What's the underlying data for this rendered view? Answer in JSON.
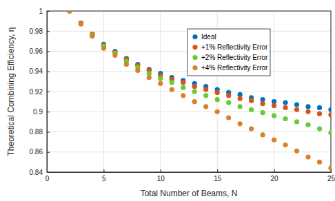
{
  "chart_data": {
    "type": "scatter",
    "x_label": "Total Number of Beams, N",
    "y_label": "Theoretical Combining Efficiency, η",
    "x": [
      2,
      3,
      4,
      5,
      6,
      7,
      8,
      9,
      10,
      11,
      12,
      13,
      14,
      15,
      16,
      17,
      18,
      19,
      20,
      21,
      22,
      23,
      24,
      25
    ],
    "series": [
      {
        "name": "Ideal",
        "color": "#0072bd",
        "values": [
          1.0,
          0.988,
          0.977,
          0.967,
          0.96,
          0.953,
          0.947,
          0.942,
          0.938,
          0.934,
          0.931,
          0.928,
          0.925,
          0.922,
          0.919,
          0.917,
          0.914,
          0.912,
          0.91,
          0.909,
          0.907,
          0.905,
          0.904,
          0.902
        ]
      },
      {
        "name": "+1% Reflectivity Error",
        "color": "#d95319",
        "values": [
          1.0,
          0.988,
          0.977,
          0.966,
          0.959,
          0.952,
          0.946,
          0.941,
          0.936,
          0.932,
          0.929,
          0.925,
          0.922,
          0.919,
          0.916,
          0.913,
          0.911,
          0.908,
          0.906,
          0.904,
          0.902,
          0.9,
          0.898,
          0.897
        ]
      },
      {
        "name": "+2% Reflectivity Error",
        "color": "#66cc33",
        "values": [
          1.0,
          0.987,
          0.976,
          0.965,
          0.958,
          0.95,
          0.944,
          0.938,
          0.933,
          0.929,
          0.924,
          0.92,
          0.916,
          0.912,
          0.909,
          0.905,
          0.902,
          0.899,
          0.896,
          0.893,
          0.89,
          0.887,
          0.883,
          0.879
        ]
      },
      {
        "name": "+4% Reflectivity Error",
        "color": "#d98029",
        "values": [
          1.0,
          0.987,
          0.975,
          0.963,
          0.956,
          0.947,
          0.941,
          0.934,
          0.928,
          0.922,
          0.916,
          0.91,
          0.905,
          0.9,
          0.894,
          0.888,
          0.883,
          0.877,
          0.872,
          0.867,
          0.861,
          0.855,
          0.85,
          0.844
        ]
      }
    ],
    "xlim": [
      0,
      25
    ],
    "xticks": [
      0,
      5,
      10,
      15,
      20,
      25
    ],
    "ylim": [
      0.84,
      1
    ],
    "yticks": [
      0.84,
      0.86,
      0.88,
      0.9,
      0.92,
      0.94,
      0.96,
      0.98,
      1
    ],
    "grid": true,
    "legend": "northeast",
    "marker": "circle"
  }
}
